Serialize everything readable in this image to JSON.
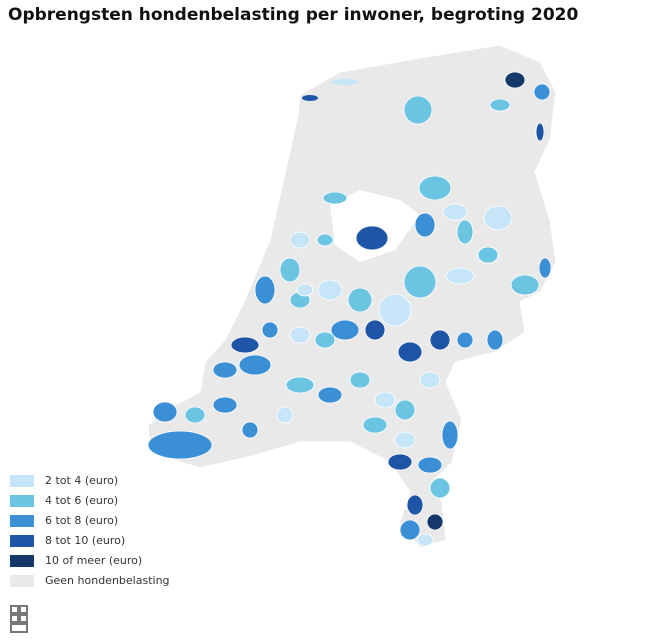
{
  "title": "Opbrengsten hondenbelasting per inwoner, begroting 2020",
  "legend": [
    {
      "label": "2 tot 4 (euro)",
      "color": "#c6e5f8"
    },
    {
      "label": "4 tot 6 (euro)",
      "color": "#6cc4e3"
    },
    {
      "label": "6 tot 8 (euro)",
      "color": "#3a8fd5"
    },
    {
      "label": "8 tot 10 (euro)",
      "color": "#1f55a6"
    },
    {
      "label": "10 of meer (euro)",
      "color": "#15386a"
    },
    {
      "label": "Geen hondenbelasting",
      "color": "#e9e9e9"
    }
  ]
}
